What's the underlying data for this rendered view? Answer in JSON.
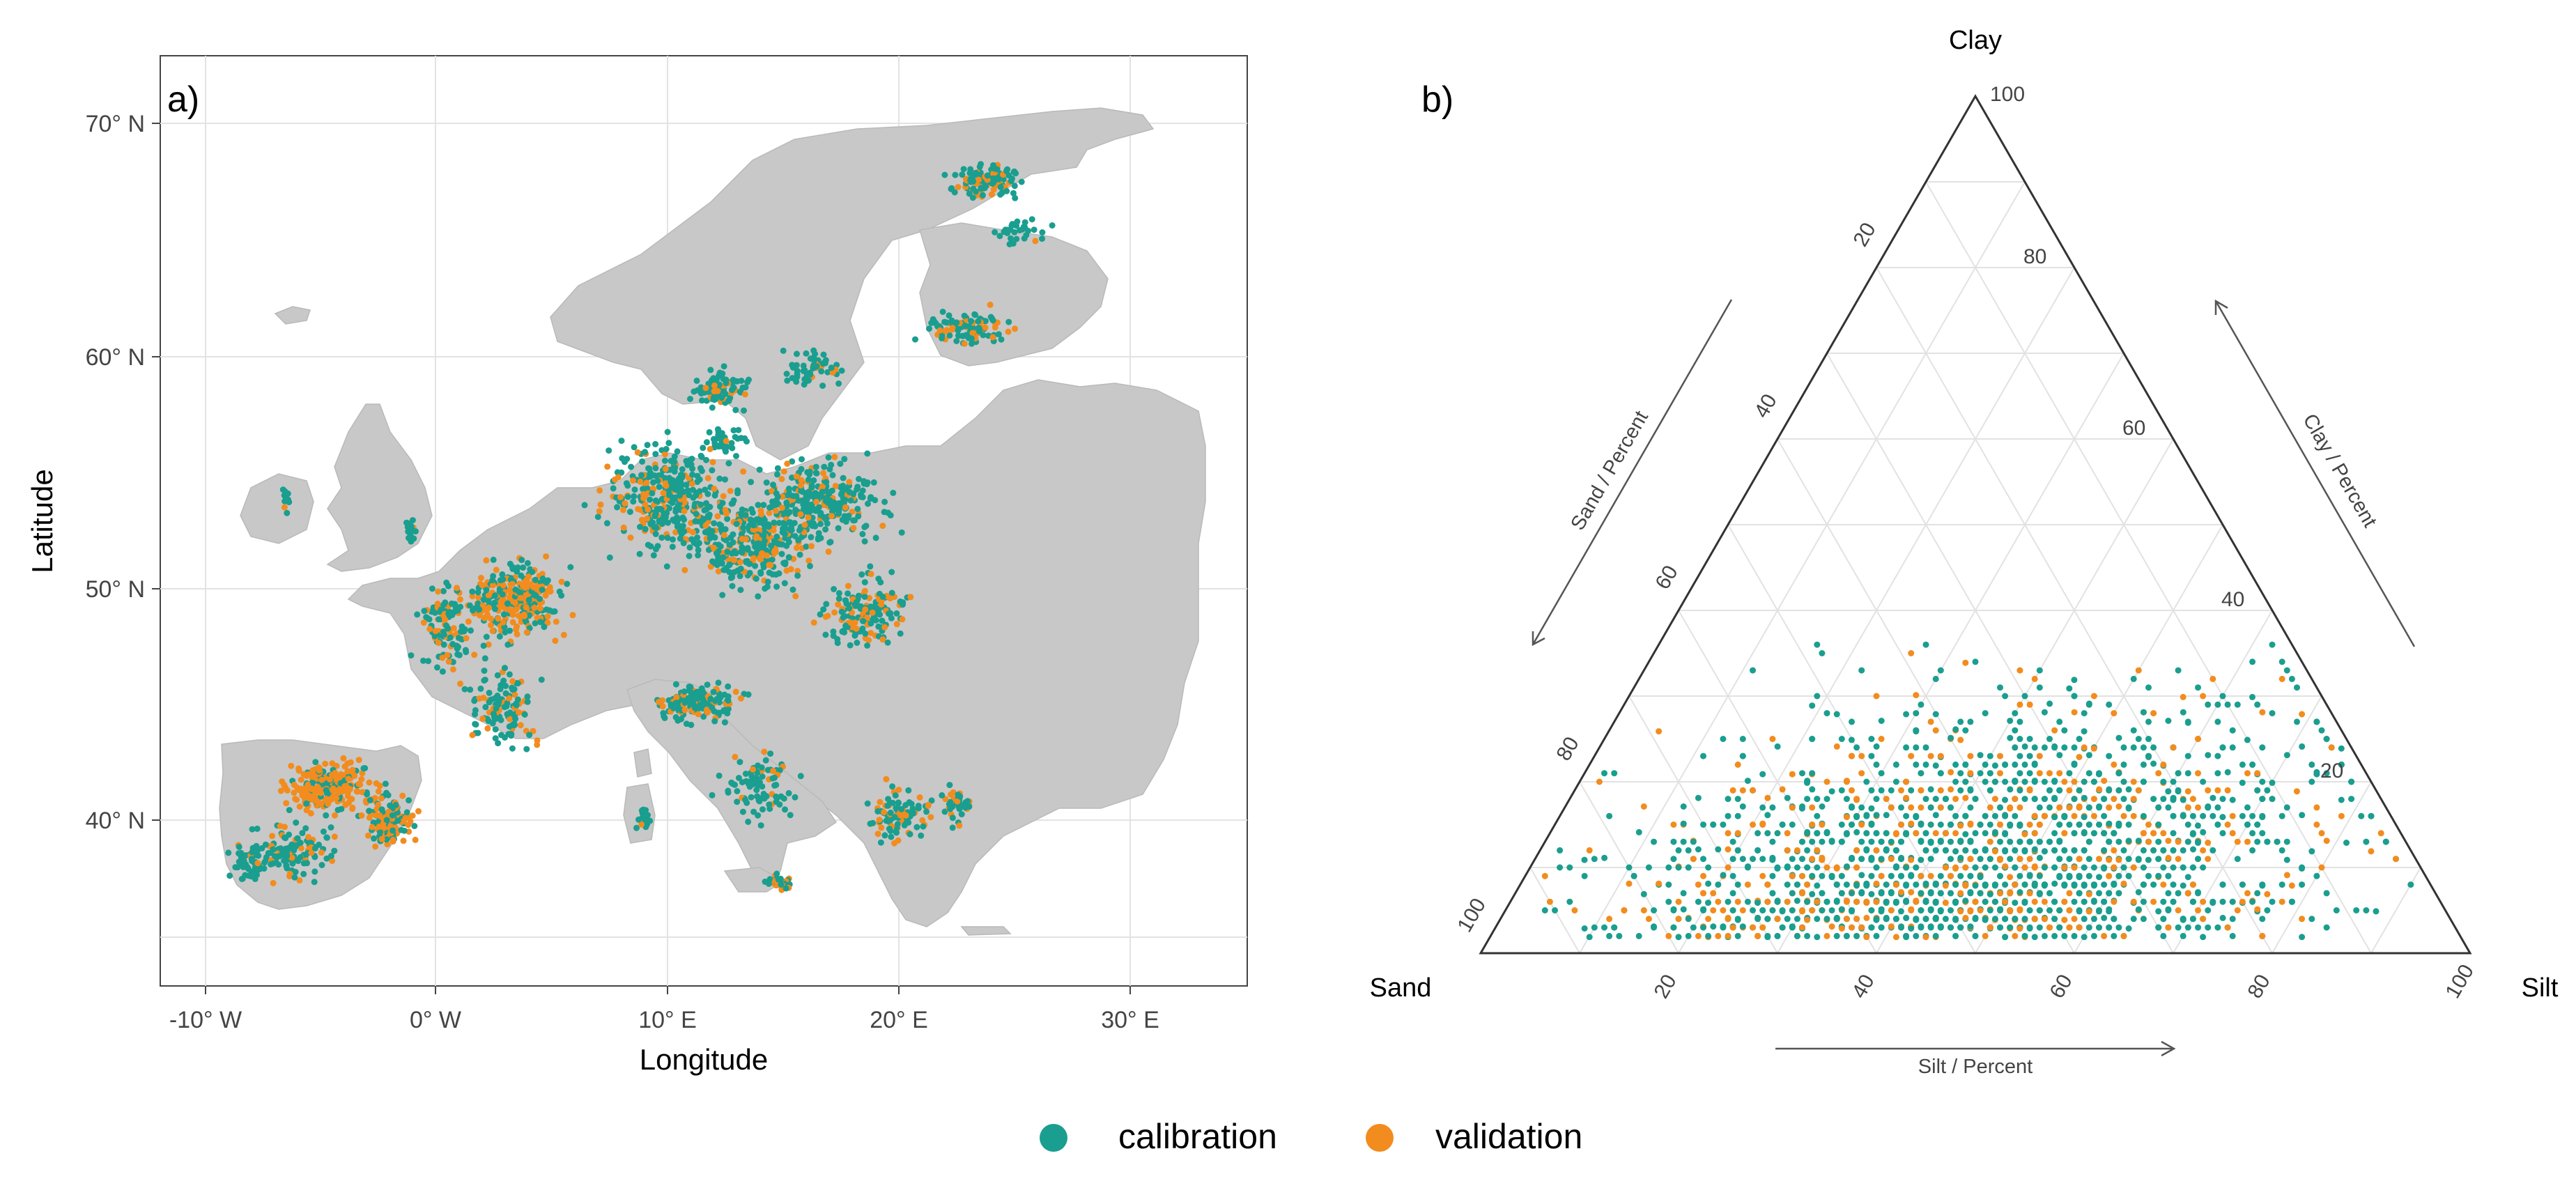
{
  "panel_a": {
    "label": "a)",
    "xlabel": "Longitude",
    "ylabel": "Latitude",
    "lon_ticks": [
      "-10° W",
      "0° W",
      "10° E",
      "20° E",
      "30° E"
    ],
    "lat_ticks": [
      "40° N",
      "50° N",
      "60° N",
      "70° N"
    ]
  },
  "panel_b": {
    "label": "b)",
    "corner_top": "Clay",
    "corner_left": "Sand",
    "corner_right": "Silt",
    "axis_sand": "Sand / Percent",
    "axis_clay": "Clay / Percent",
    "axis_silt": "Silt / Percent",
    "ticks": [
      "20",
      "40",
      "60",
      "80",
      "100"
    ]
  },
  "legend": {
    "calibration": "calibration",
    "validation": "validation"
  },
  "colors": {
    "calibration": "#1a9e8f",
    "validation": "#f28c1e",
    "land": "#c8c8c8",
    "grid": "#e6e6e6"
  }
}
